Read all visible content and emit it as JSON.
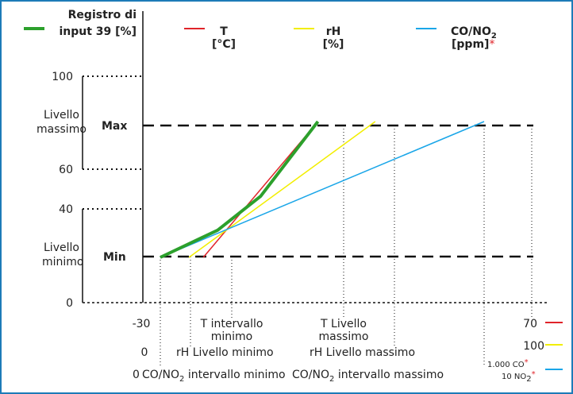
{
  "colors": {
    "input": "#2ca02c",
    "t": "#e0242a",
    "rh": "#f2ee00",
    "co": "#1aa6e8",
    "frame": "#1d7bb8",
    "star": "#e0242a"
  },
  "legend": {
    "input_line1": "Registro di",
    "input_line2": "input 39 [%]",
    "t_line1": "T",
    "t_line2": "[°C]",
    "rh_line1": "rH",
    "rh_line2": "[%]",
    "co_line1a": "CO/NO",
    "co_line1b": "2",
    "co_line2": "[ppm]",
    "co_star": "*"
  },
  "left_axis": {
    "tick_100": "100",
    "tick_60": "60",
    "tick_40": "40",
    "tick_0": "0",
    "max_label_line1": "Livello",
    "max_label_line2": "massimo",
    "min_label_line1": "Livello",
    "min_label_line2": "minimo",
    "max_tag": "Max",
    "min_tag": "Min"
  },
  "bottom_labels": {
    "x_left": "-30",
    "t_min_line1": "T intervallo",
    "t_min_line2": "minimo",
    "t_max_line1": "T Livello",
    "t_max_line2": "massimo",
    "x_right": "70",
    "rh_left": "0",
    "rh_min": "rH Livello minimo",
    "rh_max": "rH Livello massimo",
    "rh_right": "100",
    "co_right_a": "1.000 CO",
    "co_right_star": "*",
    "co_left": "0",
    "co_min_a": "CO/NO",
    "co_min_sub": "2",
    "co_min_b": " intervallo minimo",
    "co_max_a": "CO/NO",
    "co_max_sub": "2",
    "co_max_b": " intervallo massimo",
    "no2_right_a": "10 NO",
    "no2_right_sub": "2",
    "no2_right_star": "*"
  },
  "chart_data": {
    "type": "line",
    "ylim": [
      0,
      100
    ],
    "y_ticks": [
      0,
      40,
      60,
      100
    ],
    "levels": {
      "min": 20,
      "max": 80
    },
    "series": [
      {
        "name": "Registro di input 39 [%]",
        "points": [
          [
            -30,
            20
          ],
          [
            -10,
            32
          ],
          [
            5,
            47
          ],
          [
            25,
            80
          ]
        ]
      },
      {
        "name": "T [°C]",
        "points": [
          [
            -15,
            20
          ],
          [
            25,
            80
          ]
        ]
      },
      {
        "name": "rH [%]",
        "points": [
          [
            -20,
            20
          ],
          [
            45,
            80
          ]
        ]
      },
      {
        "name": "CO/NO2 [ppm]",
        "points": [
          [
            -30,
            20
          ],
          [
            83,
            80
          ]
        ]
      }
    ]
  }
}
